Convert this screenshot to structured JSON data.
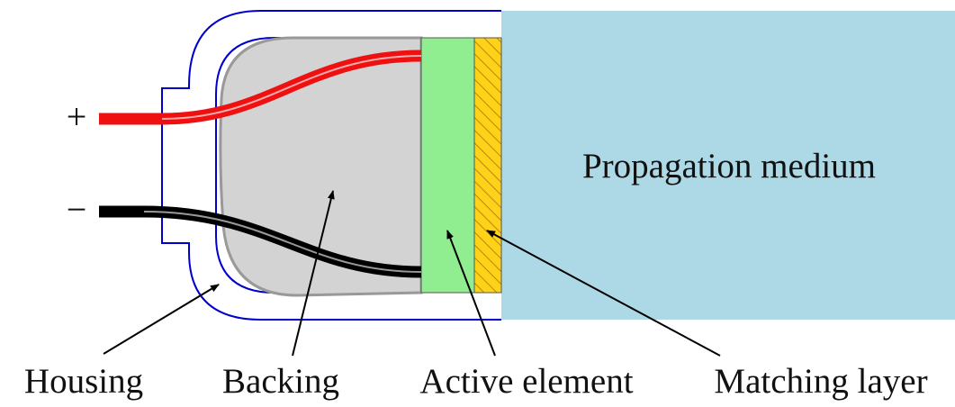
{
  "terminals": {
    "positive": "+",
    "negative": "−"
  },
  "medium": {
    "label": "Propagation medium"
  },
  "labels": [
    "Housing",
    "Backing",
    "Active element",
    "Matching layer"
  ]
}
